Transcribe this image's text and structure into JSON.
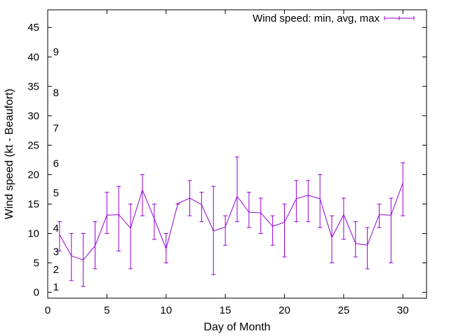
{
  "chart_data": {
    "type": "line",
    "title": "",
    "xlabel": "Day of Month",
    "ylabel": "Wind speed (kt - Beaufort)",
    "xlim": [
      0,
      32
    ],
    "ylim": [
      -1,
      48
    ],
    "xticks": [
      0,
      5,
      10,
      15,
      20,
      25,
      30
    ],
    "yticks": [
      0,
      5,
      10,
      15,
      20,
      25,
      30,
      35,
      40,
      45
    ],
    "grid": false,
    "legend_position": "top-right",
    "series": [
      {
        "name": "Wind speed: min, avg, max",
        "color": "#9400d3",
        "x": [
          1,
          2,
          3,
          4,
          5,
          6,
          7,
          8,
          9,
          10,
          11,
          12,
          13,
          14,
          15,
          16,
          17,
          18,
          19,
          20,
          21,
          22,
          23,
          24,
          25,
          26,
          27,
          28,
          29,
          30
        ],
        "avg": [
          9.8,
          6.2,
          5.5,
          7.9,
          13.1,
          13.2,
          10.9,
          17.4,
          12.5,
          7.4,
          15.1,
          16.0,
          14.9,
          10.4,
          11.1,
          16.3,
          13.6,
          13.5,
          11.2,
          11.9,
          15.9,
          16.5,
          15.9,
          9.3,
          13.2,
          8.3,
          8.0,
          13.2,
          13.1,
          18.6
        ],
        "min": [
          7,
          2,
          1,
          4,
          10,
          7,
          4,
          13,
          9,
          5,
          15,
          13,
          12,
          3,
          8,
          12,
          11,
          10,
          8,
          6,
          12,
          12,
          11,
          5,
          9,
          6,
          4,
          11,
          5,
          13
        ],
        "max": [
          12,
          10,
          10,
          12,
          17,
          18,
          15,
          20,
          15,
          10,
          15,
          19,
          17,
          18,
          13,
          23,
          17,
          16,
          13,
          15,
          19,
          19,
          20,
          13,
          16,
          12,
          11,
          15,
          16,
          22
        ]
      }
    ],
    "annotations": [
      {
        "text": "1",
        "y": 1
      },
      {
        "text": "2",
        "y": 4
      },
      {
        "text": "3",
        "y": 7
      },
      {
        "text": "4",
        "y": 11
      },
      {
        "text": "5",
        "y": 17
      },
      {
        "text": "6",
        "y": 22
      },
      {
        "text": "7",
        "y": 28
      },
      {
        "text": "8",
        "y": 34
      },
      {
        "text": "9",
        "y": 41
      }
    ]
  }
}
